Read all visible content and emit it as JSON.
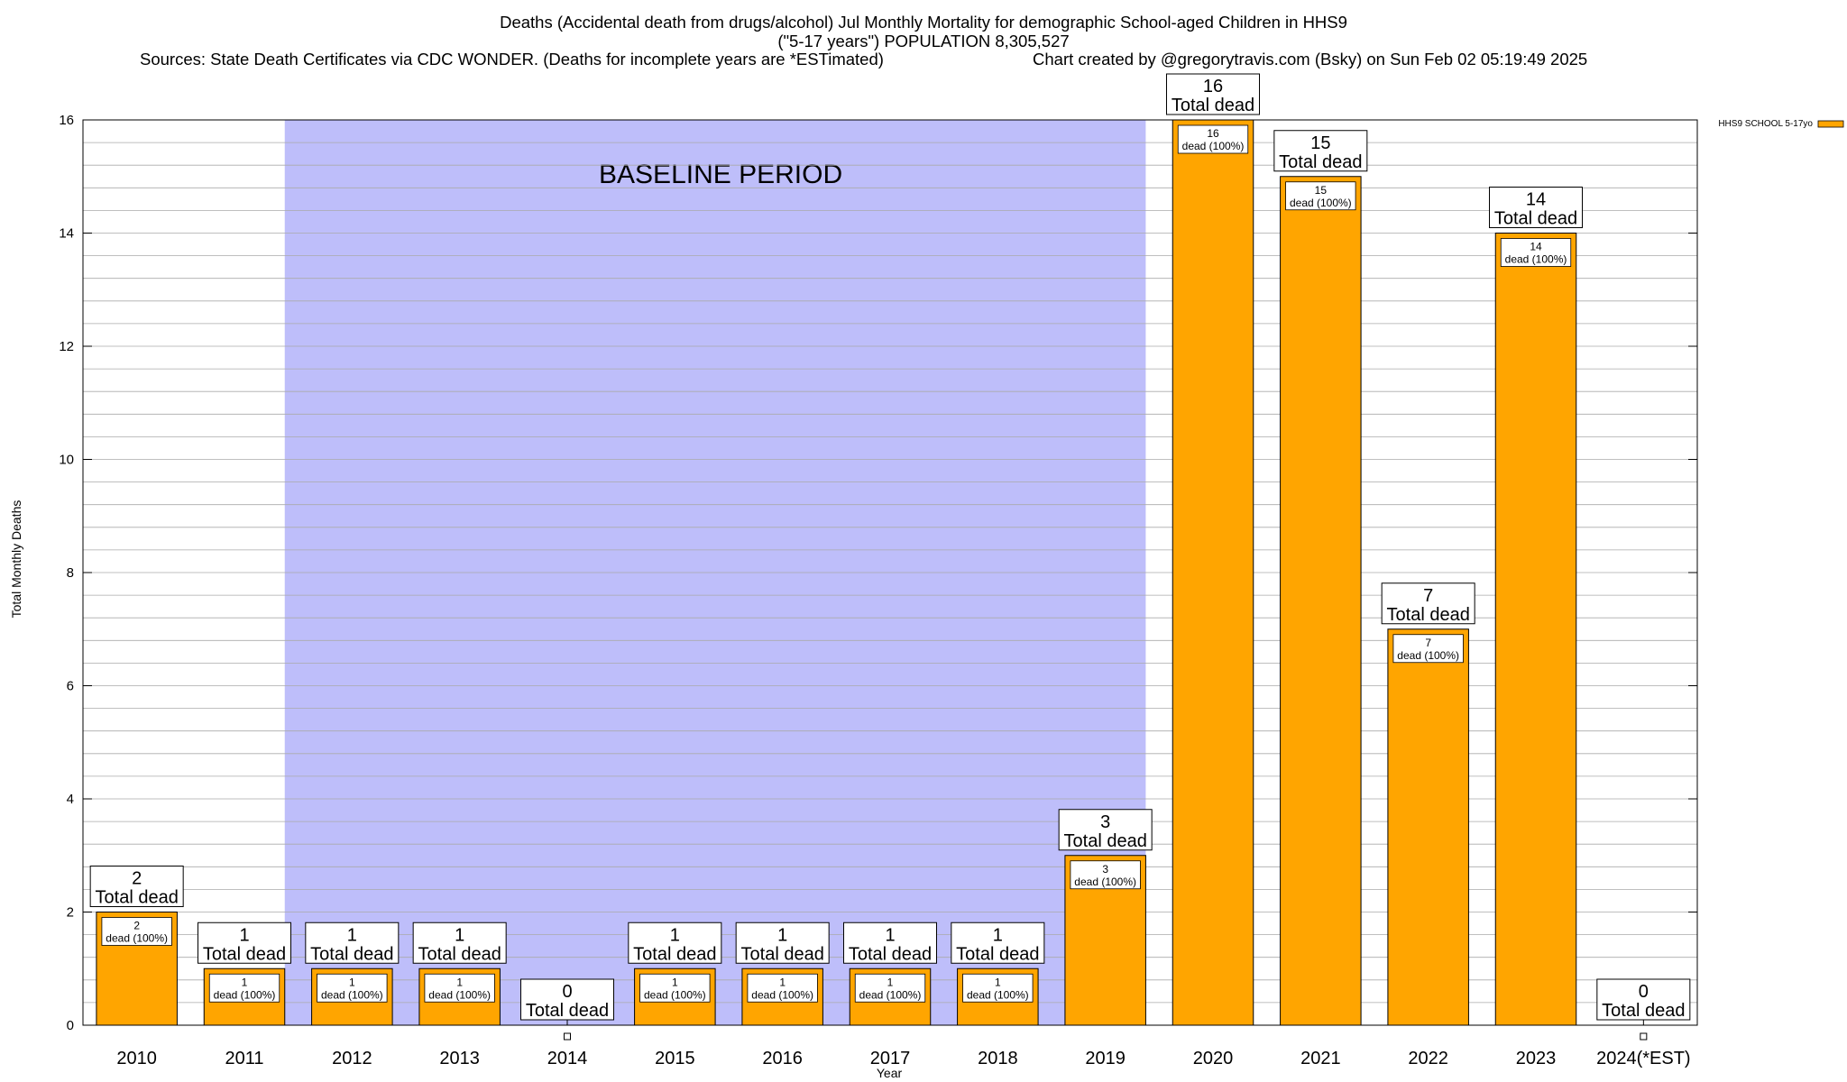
{
  "chart_data": {
    "type": "bar",
    "title_line1": "Deaths (Accidental death from drugs/alcohol) Jul Monthly Mortality for demographic School-aged Children in HHS9",
    "title_line2": "(\"5-17 years\") POPULATION 8,305,527",
    "sources": "Sources: State Death Certificates via CDC WONDER. (Deaths for incomplete years are *ESTimated)",
    "credit": "Chart created by @gregorytravis.com (Bsky) on Sun Feb 02 05:19:49 2025",
    "xlabel": "Year",
    "ylabel": "Total Monthly Deaths",
    "ylim": [
      0,
      16
    ],
    "y_ticks": [
      0,
      2,
      4,
      6,
      8,
      10,
      12,
      14,
      16
    ],
    "y_minor_step": 0.4,
    "categories": [
      "2010",
      "2011",
      "2012",
      "2013",
      "2014",
      "2015",
      "2016",
      "2017",
      "2018",
      "2019",
      "2020",
      "2021",
      "2022",
      "2023",
      "2024(*EST)"
    ],
    "series": [
      {
        "name": "HHS9 SCHOOL 5-17yo",
        "values": [
          2,
          1,
          1,
          1,
          0,
          1,
          1,
          1,
          1,
          3,
          16,
          15,
          7,
          14,
          0
        ]
      }
    ],
    "total_label_suffix": "Total dead",
    "inner_label_suffix": "dead (100%)",
    "baseline": {
      "label": "BASELINE PERIOD",
      "from": "2012",
      "to": "2019"
    },
    "legend_position": "top-right",
    "grid": true,
    "colors": {
      "bar": "#FFA500",
      "baseline": "#BEBEFA",
      "grid": "#AAAAAA"
    }
  }
}
